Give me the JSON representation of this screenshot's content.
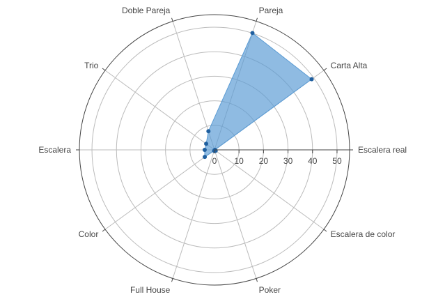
{
  "chart_data": {
    "type": "polar-area",
    "categories": [
      "Escalera real",
      "Carta Alta",
      "Pareja",
      "Doble Pareja",
      "Trio",
      "Escalera",
      "Color",
      "Full House",
      "Poker",
      "Escalera de color"
    ],
    "series": [
      {
        "values": [
          0.2,
          49,
          50.1,
          8,
          4.2,
          4,
          4.9,
          0.4,
          0.5,
          0.6
        ]
      }
    ],
    "radial_ticks": [
      "0",
      "10",
      "20",
      "30",
      "40",
      "50"
    ],
    "rlim": [
      0,
      52
    ],
    "grid": true,
    "colors": {
      "fill": "#5a9bd4",
      "line": "#1f77b4",
      "marker": "#1f5f9f",
      "grid": "#bbbbbb",
      "outer": "#444444",
      "text": "#444444"
    }
  }
}
